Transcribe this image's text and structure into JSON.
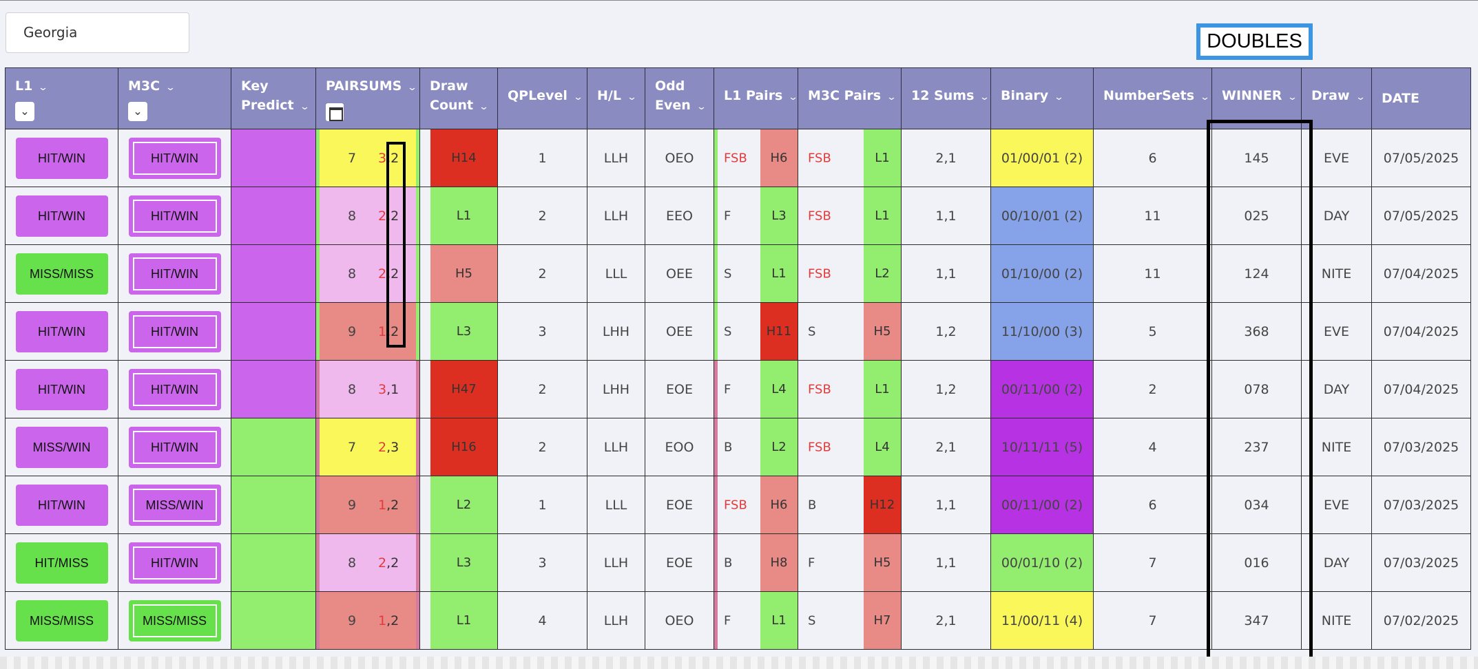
{
  "filter": {
    "state": "Georgia"
  },
  "badge": {
    "label": "DOUBLES"
  },
  "colors": {
    "header": "#8a8bc0",
    "violet": "#cb66ec",
    "green": "#66e04b",
    "light_green": "#93ed6e",
    "yellow": "#faf75a",
    "pink": "#f0b9ee",
    "salmon": "#e88a86",
    "red": "#dc2f21",
    "blue": "#86a3ea",
    "purple": "#b632e2",
    "accent_blue": "#3b95e3"
  },
  "columns": [
    {
      "key": "l1",
      "label": "L1",
      "chev": "⌄"
    },
    {
      "key": "m3c",
      "label": "M3C",
      "chev": "⌄"
    },
    {
      "key": "key_predict",
      "label1": "Key",
      "label2": "Predict",
      "chev": "⌄"
    },
    {
      "key": "pairsums",
      "label": "PAIRSUMS",
      "chev": "⌄"
    },
    {
      "key": "draw_count",
      "label1": "Draw",
      "label2": "Count",
      "chev": "⌄"
    },
    {
      "key": "qplevel",
      "label": "QPLevel",
      "chev": "⌄"
    },
    {
      "key": "hl",
      "label": "H/L",
      "chev": "⌄"
    },
    {
      "key": "odd_even",
      "label1": "Odd",
      "label2": "Even",
      "chev": "⌄"
    },
    {
      "key": "l1_pairs",
      "label": "L1 Pairs",
      "chev": "⌄"
    },
    {
      "key": "m3c_pairs",
      "label": "M3C Pairs",
      "chev": "⌄"
    },
    {
      "key": "sums12",
      "label": "12 Sums",
      "chev": "⌄"
    },
    {
      "key": "binary",
      "label": "Binary",
      "chev": "⌄"
    },
    {
      "key": "numbersets",
      "label": "NumberSets",
      "chev": "⌄"
    },
    {
      "key": "winner",
      "label": "WINNER",
      "chev": "⌄"
    },
    {
      "key": "draw",
      "label": "Draw",
      "chev": "⌄"
    },
    {
      "key": "date",
      "label": "DATE"
    }
  ],
  "header_icons": {
    "l1_toggle": "chevron-down-icon",
    "m3c_toggle": "chevron-down-icon",
    "pairsums_calendar": "calendar-icon"
  },
  "rows": [
    {
      "l1": "HIT/WIN",
      "l1_color": "violet",
      "m3c": "HIT/WIN",
      "m3c_color": "violet",
      "key_color": "violet",
      "ps_sum": "7",
      "ps_a": "3",
      "ps_b": "2",
      "ps_bg": "yellow",
      "ps_edge": "green",
      "dc": "H14",
      "dc_color": "red",
      "qp": "1",
      "hl": "LLH",
      "oe": "OEO",
      "l1p": "FSB",
      "l1p_red": true,
      "l1p_lvl": "H6",
      "l1p_lvl_color": "salmon",
      "l1p_edge": "green",
      "m3p": "FSB",
      "m3p_red": true,
      "m3p_lvl": "L1",
      "m3p_lvl_color": "light_green",
      "sums12": "2,1",
      "binary": "01/00/01 (2)",
      "bin_color": "yellow",
      "ns": "6",
      "winner": "145",
      "winner_blue": false,
      "draw": "EVE",
      "date": "07/05/2025"
    },
    {
      "l1": "HIT/WIN",
      "l1_color": "violet",
      "m3c": "HIT/WIN",
      "m3c_color": "violet",
      "key_color": "violet",
      "ps_sum": "8",
      "ps_a": "2",
      "ps_b": "2",
      "ps_bg": "pink",
      "ps_edge": "green",
      "dc": "L1",
      "dc_color": "light_green",
      "qp": "2",
      "hl": "LLH",
      "oe": "EEO",
      "l1p": "F",
      "l1p_red": false,
      "l1p_lvl": "L3",
      "l1p_lvl_color": "light_green",
      "l1p_edge": "green",
      "m3p": "FSB",
      "m3p_red": true,
      "m3p_lvl": "L1",
      "m3p_lvl_color": "light_green",
      "sums12": "1,1",
      "binary": "00/10/01 (2)",
      "bin_color": "blue",
      "ns": "11",
      "winner": "025",
      "winner_blue": false,
      "draw": "DAY",
      "date": "07/05/2025"
    },
    {
      "l1": "MISS/MISS",
      "l1_color": "green",
      "m3c": "HIT/WIN",
      "m3c_color": "violet",
      "key_color": "violet",
      "ps_sum": "8",
      "ps_a": "2",
      "ps_b": "2",
      "ps_bg": "pink",
      "ps_edge": "green",
      "dc": "H5",
      "dc_color": "salmon",
      "qp": "2",
      "hl": "LLL",
      "oe": "OEE",
      "l1p": "S",
      "l1p_red": false,
      "l1p_lvl": "L1",
      "l1p_lvl_color": "light_green",
      "l1p_edge": "green",
      "m3p": "FSB",
      "m3p_red": true,
      "m3p_lvl": "L2",
      "m3p_lvl_color": "light_green",
      "sums12": "1,1",
      "binary": "01/10/00 (2)",
      "bin_color": "blue",
      "ns": "11",
      "winner": "124",
      "winner_blue": false,
      "draw": "NITE",
      "date": "07/04/2025"
    },
    {
      "l1": "HIT/WIN",
      "l1_color": "violet",
      "m3c": "HIT/WIN",
      "m3c_color": "violet",
      "key_color": "violet",
      "ps_sum": "9",
      "ps_a": "1",
      "ps_b": "2",
      "ps_bg": "salmon",
      "ps_edge": "green",
      "dc": "L3",
      "dc_color": "light_green",
      "qp": "3",
      "hl": "LHH",
      "oe": "OEE",
      "l1p": "S",
      "l1p_red": false,
      "l1p_lvl": "H11",
      "l1p_lvl_color": "red",
      "l1p_edge": "green",
      "m3p": "S",
      "m3p_red": false,
      "m3p_lvl": "H5",
      "m3p_lvl_color": "salmon",
      "sums12": "1,2",
      "binary": "11/10/00 (3)",
      "bin_color": "blue",
      "ns": "5",
      "winner": "368",
      "winner_blue": false,
      "draw": "EVE",
      "date": "07/04/2025"
    },
    {
      "l1": "HIT/WIN",
      "l1_color": "violet",
      "m3c": "HIT/WIN",
      "m3c_color": "violet",
      "key_color": "violet",
      "ps_sum": "8",
      "ps_a": "3",
      "ps_b": "1",
      "ps_bg": "pink",
      "ps_edge": "rose",
      "dc": "H47",
      "dc_color": "red",
      "qp": "2",
      "hl": "LHH",
      "oe": "EOE",
      "l1p": "F",
      "l1p_red": false,
      "l1p_lvl": "L4",
      "l1p_lvl_color": "light_green",
      "l1p_edge": "rose",
      "m3p": "FSB",
      "m3p_red": true,
      "m3p_lvl": "L1",
      "m3p_lvl_color": "light_green",
      "sums12": "1,2",
      "binary": "00/11/00 (2)",
      "bin_color": "purple",
      "ns": "2",
      "winner": "078",
      "winner_blue": false,
      "draw": "DAY",
      "date": "07/04/2025"
    },
    {
      "l1": "MISS/WIN",
      "l1_color": "violet",
      "m3c": "HIT/WIN",
      "m3c_color": "violet",
      "key_color": "green",
      "ps_sum": "7",
      "ps_a": "2",
      "ps_b": "3",
      "ps_bg": "yellow",
      "ps_edge": "rose",
      "dc": "H16",
      "dc_color": "red",
      "qp": "2",
      "hl": "LLH",
      "oe": "EOO",
      "l1p": "B",
      "l1p_red": false,
      "l1p_lvl": "L2",
      "l1p_lvl_color": "light_green",
      "l1p_edge": "rose",
      "m3p": "FSB",
      "m3p_red": true,
      "m3p_lvl": "L4",
      "m3p_lvl_color": "light_green",
      "sums12": "2,1",
      "binary": "10/11/11 (5)",
      "bin_color": "purple",
      "ns": "4",
      "winner": "237",
      "winner_blue": false,
      "draw": "NITE",
      "date": "07/03/2025"
    },
    {
      "l1": "HIT/WIN",
      "l1_color": "violet",
      "m3c": "MISS/WIN",
      "m3c_color": "violet",
      "key_color": "green",
      "ps_sum": "9",
      "ps_a": "1",
      "ps_b": "2",
      "ps_bg": "salmon",
      "ps_edge": "rose",
      "dc": "L2",
      "dc_color": "light_green",
      "qp": "1",
      "hl": "LLL",
      "oe": "EOE",
      "l1p": "FSB",
      "l1p_red": true,
      "l1p_lvl": "H6",
      "l1p_lvl_color": "salmon",
      "l1p_edge": "rose",
      "m3p": "B",
      "m3p_red": false,
      "m3p_lvl": "H12",
      "m3p_lvl_color": "red",
      "sums12": "1,1",
      "binary": "00/11/00 (2)",
      "bin_color": "purple",
      "ns": "6",
      "winner": "034",
      "winner_blue": false,
      "draw": "EVE",
      "date": "07/03/2025"
    },
    {
      "l1": "HIT/MISS",
      "l1_color": "green",
      "m3c": "HIT/WIN",
      "m3c_color": "violet",
      "key_color": "green",
      "ps_sum": "8",
      "ps_a": "2",
      "ps_b": "2",
      "ps_bg": "pink",
      "ps_edge": "rose",
      "dc": "L3",
      "dc_color": "light_green",
      "qp": "3",
      "hl": "LLH",
      "oe": "EOE",
      "l1p": "B",
      "l1p_red": false,
      "l1p_lvl": "H8",
      "l1p_lvl_color": "salmon",
      "l1p_edge": "rose",
      "m3p": "F",
      "m3p_red": false,
      "m3p_lvl": "H5",
      "m3p_lvl_color": "salmon",
      "sums12": "1,1",
      "binary": "00/01/10 (2)",
      "bin_color": "light_green",
      "ns": "7",
      "winner": "016",
      "winner_blue": true,
      "draw": "DAY",
      "date": "07/03/2025"
    },
    {
      "l1": "MISS/MISS",
      "l1_color": "green",
      "m3c": "MISS/MISS",
      "m3c_color": "green",
      "key_color": "green",
      "ps_sum": "9",
      "ps_a": "1",
      "ps_b": "2",
      "ps_bg": "salmon",
      "ps_edge": "rose",
      "dc": "L1",
      "dc_color": "light_green",
      "qp": "4",
      "hl": "LLH",
      "oe": "OEO",
      "l1p": "F",
      "l1p_red": false,
      "l1p_lvl": "L1",
      "l1p_lvl_color": "light_green",
      "l1p_edge": "rose",
      "m3p": "S",
      "m3p_red": false,
      "m3p_lvl": "H7",
      "m3p_lvl_color": "salmon",
      "sums12": "2,1",
      "binary": "11/00/11 (4)",
      "bin_color": "yellow",
      "ns": "7",
      "winner": "347",
      "winner_blue": false,
      "draw": "NITE",
      "date": "07/02/2025"
    }
  ]
}
